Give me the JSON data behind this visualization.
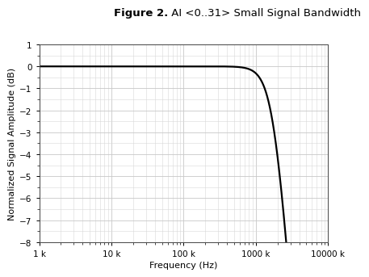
{
  "title_bold": "Figure 2.",
  "title_normal": " AI <0..31> Small Signal Bandwidth",
  "xlabel": "Frequency (Hz)",
  "ylabel": "Normalized Signal Amplitude (dB)",
  "xmin": 1000,
  "xmax": 10000000,
  "ymin": -8,
  "ymax": 1,
  "yticks": [
    1,
    0,
    -1,
    -2,
    -3,
    -4,
    -5,
    -6,
    -7,
    -8
  ],
  "xtick_positions": [
    1000,
    10000,
    100000,
    1000000,
    10000000
  ],
  "xtick_labels": [
    "1 k",
    "10 k",
    "100 k",
    "1000 k",
    "10000 k"
  ],
  "line_color": "#000000",
  "line_width": 1.6,
  "background_color": "#ffffff",
  "grid_major_color": "#c8c8c8",
  "grid_minor_color": "#d8d8d8",
  "fc_hz": 1800000,
  "filter_order": 2.2,
  "title_fontsize": 9.5,
  "axis_label_fontsize": 8,
  "tick_fontsize": 7.5
}
